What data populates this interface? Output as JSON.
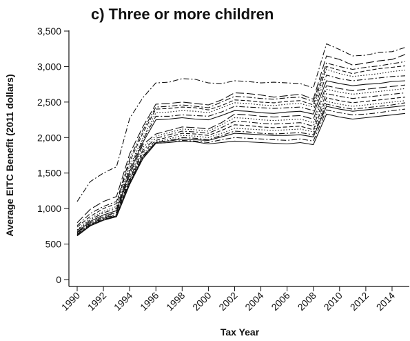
{
  "chart_data": {
    "type": "line",
    "title": "c) Three or more children",
    "xlabel": "Tax Year",
    "ylabel": "Average EITC Benefit (2011 dollars)",
    "xlim": [
      1990,
      2015
    ],
    "ylim": [
      0,
      3500
    ],
    "x_ticks": [
      "1990",
      "1992",
      "1994",
      "1996",
      "1998",
      "2000",
      "2002",
      "2004",
      "2006",
      "2008",
      "2010",
      "2012",
      "2014"
    ],
    "y_ticks": [
      "0",
      "500",
      "1,000",
      "1,500",
      "2,000",
      "2,500",
      "3,000",
      "3,500"
    ],
    "grid": false,
    "legend": "none",
    "x": [
      1990,
      1991,
      1992,
      1993,
      1994,
      1995,
      1996,
      1997,
      1998,
      1999,
      2000,
      2001,
      2002,
      2003,
      2004,
      2005,
      2006,
      2007,
      2008,
      2009,
      2010,
      2011,
      2012,
      2013,
      2014,
      2015
    ],
    "series": [
      {
        "values": [
          1100,
          1380,
          1500,
          1590,
          2270,
          2560,
          2770,
          2780,
          2830,
          2820,
          2770,
          2760,
          2800,
          2790,
          2770,
          2780,
          2770,
          2760,
          2700,
          3320,
          3240,
          3150,
          3160,
          3200,
          3210,
          3270
        ],
        "style": "dashdot"
      },
      {
        "values": [
          800,
          990,
          1100,
          1170,
          1770,
          2150,
          2470,
          2480,
          2500,
          2480,
          2460,
          2530,
          2630,
          2620,
          2600,
          2570,
          2590,
          2610,
          2540,
          3150,
          3100,
          3020,
          3050,
          3080,
          3100,
          3170
        ],
        "style": "longdash"
      },
      {
        "values": [
          760,
          930,
          1030,
          1100,
          1700,
          2100,
          2430,
          2440,
          2460,
          2440,
          2420,
          2500,
          2580,
          2570,
          2550,
          2540,
          2560,
          2570,
          2510,
          3050,
          3000,
          2960,
          2990,
          3010,
          3040,
          3070
        ],
        "style": "dashdot"
      },
      {
        "values": [
          740,
          890,
          1000,
          1070,
          1660,
          2060,
          2400,
          2410,
          2430,
          2420,
          2390,
          2450,
          2530,
          2520,
          2500,
          2490,
          2510,
          2520,
          2460,
          3000,
          2950,
          2900,
          2940,
          2970,
          2990,
          3010
        ],
        "style": "dash"
      },
      {
        "values": [
          700,
          860,
          960,
          1030,
          1600,
          1990,
          2350,
          2360,
          2380,
          2370,
          2350,
          2420,
          2490,
          2480,
          2460,
          2450,
          2470,
          2480,
          2430,
          2960,
          2900,
          2860,
          2880,
          2900,
          2930,
          2950
        ],
        "style": "dot"
      },
      {
        "values": [
          690,
          840,
          940,
          1000,
          1560,
          1960,
          2300,
          2300,
          2320,
          2310,
          2300,
          2360,
          2440,
          2430,
          2420,
          2410,
          2420,
          2430,
          2380,
          2880,
          2830,
          2800,
          2820,
          2840,
          2860,
          2870
        ],
        "style": "dashdot"
      },
      {
        "values": [
          670,
          820,
          910,
          970,
          1520,
          1930,
          2250,
          2260,
          2280,
          2260,
          2250,
          2310,
          2380,
          2370,
          2350,
          2340,
          2360,
          2370,
          2330,
          2800,
          2760,
          2730,
          2750,
          2760,
          2790,
          2800
        ],
        "style": "solid"
      },
      {
        "values": [
          660,
          800,
          890,
          950,
          1480,
          1900,
          2050,
          2100,
          2150,
          2140,
          2120,
          2210,
          2330,
          2320,
          2300,
          2290,
          2300,
          2310,
          2260,
          2730,
          2690,
          2660,
          2680,
          2700,
          2720,
          2740
        ],
        "style": "longdash"
      },
      {
        "values": [
          650,
          790,
          880,
          940,
          1450,
          1860,
          2020,
          2070,
          2120,
          2110,
          2090,
          2180,
          2280,
          2270,
          2250,
          2240,
          2250,
          2260,
          2210,
          2680,
          2640,
          2610,
          2630,
          2650,
          2670,
          2690
        ],
        "style": "dot"
      },
      {
        "values": [
          640,
          780,
          870,
          920,
          1420,
          1820,
          1990,
          2040,
          2090,
          2080,
          2060,
          2140,
          2230,
          2220,
          2200,
          2190,
          2200,
          2210,
          2160,
          2620,
          2580,
          2550,
          2570,
          2590,
          2610,
          2630
        ],
        "style": "dashdot"
      },
      {
        "values": [
          630,
          770,
          860,
          910,
          1400,
          1790,
          1960,
          2010,
          2060,
          2050,
          2030,
          2100,
          2180,
          2170,
          2150,
          2140,
          2150,
          2160,
          2110,
          2560,
          2520,
          2490,
          2510,
          2530,
          2550,
          2570
        ],
        "style": "dash"
      },
      {
        "values": [
          630,
          770,
          850,
          900,
          1380,
          1760,
          1940,
          1980,
          2030,
          2020,
          2000,
          2060,
          2130,
          2120,
          2110,
          2100,
          2110,
          2120,
          2080,
          2510,
          2470,
          2440,
          2460,
          2480,
          2500,
          2520
        ],
        "style": "dot"
      },
      {
        "values": [
          625,
          765,
          845,
          900,
          1370,
          1740,
          1930,
          1960,
          2000,
          1990,
          1970,
          2030,
          2090,
          2080,
          2060,
          2050,
          2060,
          2070,
          2040,
          2470,
          2430,
          2400,
          2420,
          2440,
          2460,
          2490
        ],
        "style": "dashdot"
      },
      {
        "values": [
          620,
          760,
          840,
          895,
          1360,
          1730,
          1930,
          1950,
          1980,
          1970,
          1960,
          2010,
          2060,
          2050,
          2040,
          2030,
          2030,
          2040,
          2010,
          2440,
          2400,
          2370,
          2390,
          2410,
          2430,
          2450
        ],
        "style": "solid"
      },
      {
        "values": [
          620,
          760,
          840,
          890,
          1350,
          1710,
          1920,
          1930,
          1960,
          1950,
          1930,
          1970,
          2000,
          1990,
          1980,
          1970,
          1960,
          1980,
          1950,
          2390,
          2350,
          2320,
          2330,
          2350,
          2380,
          2400
        ],
        "style": "dashdot"
      },
      {
        "values": [
          615,
          755,
          835,
          885,
          1340,
          1700,
          1920,
          1930,
          1950,
          1940,
          1910,
          1930,
          1950,
          1940,
          1930,
          1920,
          1910,
          1930,
          1900,
          2330,
          2290,
          2260,
          2280,
          2300,
          2320,
          2340
        ],
        "style": "solid"
      }
    ]
  }
}
